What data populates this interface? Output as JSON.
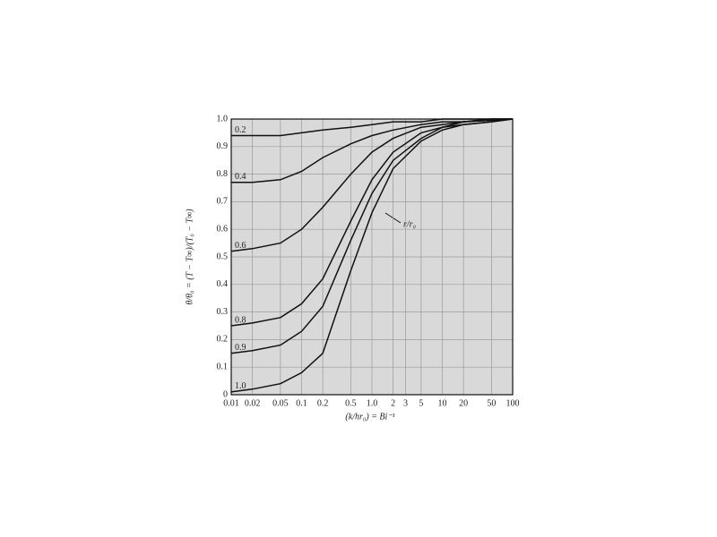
{
  "chart_data": {
    "type": "line",
    "x_label": "(k/hr₀) = Bi⁻¹",
    "y_label": "θ/θ₀ = (T − T∞)/(T₀ − T∞)",
    "annotation": "r/r₀",
    "x_scale": "log",
    "grid": true,
    "xlim": [
      0.01,
      100
    ],
    "ylim": [
      0,
      1
    ],
    "xticks": [
      0.01,
      0.02,
      0.05,
      0.1,
      0.2,
      0.5,
      {
        "value": 1,
        "label": "1.0"
      },
      2,
      3,
      5,
      10,
      20,
      50,
      100
    ],
    "yticks": [
      0,
      0.1,
      0.2,
      0.3,
      0.4,
      0.5,
      0.6,
      0.7,
      0.8,
      0.9,
      {
        "value": 1,
        "label": "1.0"
      }
    ],
    "x": [
      0.01,
      0.02,
      0.05,
      0.1,
      0.2,
      0.5,
      1,
      2,
      5,
      10,
      20,
      50,
      100
    ],
    "series": [
      {
        "name": "0.2",
        "color": "#111111",
        "values": [
          0.94,
          0.94,
          0.94,
          0.95,
          0.96,
          0.97,
          0.98,
          0.99,
          0.99,
          1,
          1,
          1,
          1
        ]
      },
      {
        "name": "0.4",
        "color": "#111111",
        "values": [
          0.77,
          0.77,
          0.78,
          0.81,
          0.86,
          0.91,
          0.94,
          0.96,
          0.98,
          0.99,
          0.99,
          1,
          1
        ]
      },
      {
        "name": "0.6",
        "color": "#111111",
        "values": [
          0.52,
          0.53,
          0.55,
          0.6,
          0.68,
          0.8,
          0.88,
          0.93,
          0.97,
          0.98,
          0.99,
          1,
          1
        ]
      },
      {
        "name": "0.8",
        "color": "#111111",
        "values": [
          0.25,
          0.26,
          0.28,
          0.33,
          0.42,
          0.63,
          0.78,
          0.88,
          0.95,
          0.97,
          0.99,
          0.995,
          1
        ]
      },
      {
        "name": "0.9",
        "color": "#111111",
        "values": [
          0.15,
          0.16,
          0.18,
          0.23,
          0.32,
          0.56,
          0.73,
          0.85,
          0.93,
          0.97,
          0.98,
          0.99,
          1
        ]
      },
      {
        "name": "1.0",
        "color": "#111111",
        "values": [
          0.01,
          0.02,
          0.04,
          0.08,
          0.15,
          0.45,
          0.66,
          0.82,
          0.92,
          0.96,
          0.98,
          0.99,
          1
        ]
      }
    ]
  }
}
